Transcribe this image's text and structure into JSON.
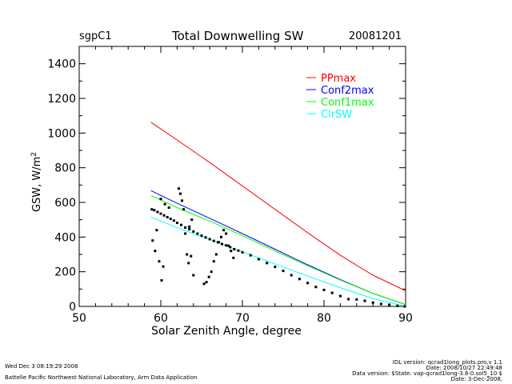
{
  "header": {
    "site": "sgpC1",
    "title": "Total Downwelling SW",
    "date": "20081201"
  },
  "footer": {
    "run_time": "Wed Dec  3 08:19:29 2008",
    "institution": "Battelle Pacific Northwest National Laboratory, Arm Data Application",
    "idl_version": "IDL version: qcrad1long_plots.pro,v 1.1",
    "idl_date": "Date: 2008/10/27 22:49:48",
    "data_version": "Data version: $State: vap-qcrad1long-3.8-0.sol5_10 $",
    "data_date": "Date: 3-Dec-2008,"
  },
  "colors": {
    "PPmax": "#ff0000",
    "Conf2max": "#0000ff",
    "Conf1max": "#00ff00",
    "ClrSW": "#00ffff",
    "obs": "#000000"
  },
  "chart_data": {
    "type": "line",
    "xlabel": "Solar Zenith Angle, degree",
    "ylabel": "GSW, W/m",
    "ylabel_sup": "2",
    "xlim": [
      50,
      90
    ],
    "ylim": [
      0,
      1500
    ],
    "xticks": [
      50,
      60,
      70,
      80,
      90
    ],
    "yticks": [
      0,
      200,
      400,
      600,
      800,
      1000,
      1200,
      1400
    ],
    "legend_position": "top-right",
    "series": [
      {
        "name": "PPmax",
        "color": "#ff0000",
        "x": [
          58.8,
          62,
          66,
          70,
          74,
          78,
          82,
          86,
          90
        ],
        "y": [
          1062,
          960,
          830,
          695,
          560,
          425,
          295,
          180,
          90
        ]
      },
      {
        "name": "Conf2max",
        "color": "#0000ff",
        "x": [
          58.8,
          62,
          66,
          70,
          74,
          78,
          82,
          86,
          90
        ],
        "y": [
          668,
          595,
          508,
          420,
          330,
          240,
          155,
          75,
          10
        ]
      },
      {
        "name": "Conf1max",
        "color": "#00ff00",
        "x": [
          58.8,
          62,
          66,
          70,
          74,
          78,
          82,
          86,
          90
        ],
        "y": [
          640,
          570,
          492,
          408,
          320,
          235,
          152,
          75,
          10
        ]
      },
      {
        "name": "ClrSW",
        "color": "#00ffff",
        "x": [
          58.8,
          62,
          66,
          70,
          74,
          78,
          82,
          86,
          90
        ],
        "y": [
          515,
          455,
          385,
          315,
          245,
          175,
          108,
          45,
          0
        ]
      }
    ],
    "observed": {
      "x": [
        58.9,
        59.2,
        59.6,
        60.0,
        60.4,
        60.8,
        61.2,
        61.6,
        62.0,
        62.5,
        63.0,
        63.5,
        64.0,
        64.5,
        65.0,
        65.5,
        66.0,
        66.5,
        67.0,
        67.5,
        68.0,
        68.5,
        69.0,
        69.5,
        70.0,
        71.0,
        72.0,
        73.0,
        74.0,
        75.0,
        76.0,
        77.0,
        78.0,
        79.0,
        80.0,
        81.0,
        82.0,
        83.0,
        84.0,
        85.0,
        86.0,
        87.0,
        88.0,
        89.0,
        89.9,
        59.0,
        59.3,
        59.5,
        59.8,
        60.1,
        60.3,
        62.2,
        62.4,
        62.6,
        62.8,
        63.0,
        63.2,
        63.4,
        63.7,
        64.0,
        65.3,
        65.6,
        65.9,
        66.2,
        66.5,
        66.8,
        67.1,
        67.4,
        67.7,
        68.0,
        68.3,
        68.6,
        68.9,
        63.5,
        63.8,
        60.0,
        60.5,
        61.0
      ],
      "y": [
        560,
        555,
        545,
        535,
        525,
        515,
        505,
        495,
        482,
        470,
        455,
        445,
        432,
        420,
        408,
        398,
        388,
        378,
        370,
        360,
        352,
        342,
        330,
        322,
        312,
        295,
        272,
        250,
        228,
        205,
        180,
        158,
        135,
        112,
        95,
        78,
        60,
        42,
        40,
        32,
        22,
        14,
        8,
        3,
        0,
        380,
        320,
        440,
        260,
        150,
        230,
        680,
        650,
        610,
        560,
        420,
        300,
        250,
        290,
        180,
        130,
        140,
        170,
        200,
        260,
        300,
        370,
        400,
        440,
        420,
        350,
        320,
        280,
        460,
        500,
        620,
        590,
        570
      ]
    }
  }
}
